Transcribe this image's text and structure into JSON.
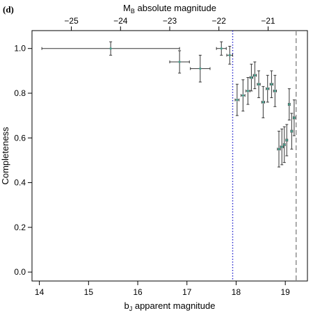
{
  "chart_data": {
    "type": "scatter",
    "panel_label": "(d)",
    "title": "",
    "xlabel": "bJ apparent magnitude",
    "xlabel_main": "b",
    "xlabel_sub": "J",
    "xlabel_rest": " apparent magnitude",
    "ylabel": "Completeness",
    "top_xlabel": "MB absolute magnitude",
    "top_xlabel_main": "M",
    "top_xlabel_sub": "B",
    "top_xlabel_rest": " absolute magnitude",
    "xlim": [
      13.85,
      19.45
    ],
    "ylim": [
      -0.04,
      1.08
    ],
    "x_ticks": [
      "14",
      "15",
      "16",
      "17",
      "18",
      "19"
    ],
    "y_ticks": [
      "0.0",
      "0.2",
      "0.4",
      "0.6",
      "0.8",
      "1.0"
    ],
    "top_ticks": [
      {
        "label": "−25",
        "x": 14.65
      },
      {
        "label": "−24",
        "x": 15.65
      },
      {
        "label": "−23",
        "x": 16.65
      },
      {
        "label": "−22",
        "x": 17.65
      },
      {
        "label": "−21",
        "x": 18.65
      }
    ],
    "grid": false,
    "colors": {
      "marker": "#4a9a8a",
      "errorbar": "#333333",
      "vline_dotted": "#2222cc",
      "vline_dashed": "#888888"
    },
    "reference_lines": [
      {
        "x": 17.93,
        "style": "dotted",
        "color": "#2222cc"
      },
      {
        "x": 19.22,
        "style": "dashed",
        "color": "#888888"
      }
    ],
    "points": [
      {
        "x": 15.45,
        "y": 1.0,
        "xerr_low": 1.4,
        "xerr_high": 1.4,
        "yerr": 0.03
      },
      {
        "x": 16.85,
        "y": 0.94,
        "xerr_low": 0.2,
        "xerr_high": 0.2,
        "yerr": 0.05
      },
      {
        "x": 17.27,
        "y": 0.91,
        "xerr_low": 0.2,
        "xerr_high": 0.2,
        "yerr": 0.06
      },
      {
        "x": 17.7,
        "y": 1.0,
        "xerr_low": 0.1,
        "xerr_high": 0.1,
        "yerr": 0.03
      },
      {
        "x": 17.87,
        "y": 0.97,
        "xerr_low": 0.06,
        "xerr_high": 0.06,
        "yerr": 0.04
      },
      {
        "x": 18.02,
        "y": 0.77,
        "xerr_low": 0.04,
        "xerr_high": 0.04,
        "yerr": 0.07
      },
      {
        "x": 18.14,
        "y": 0.79,
        "xerr_low": 0.04,
        "xerr_high": 0.04,
        "yerr": 0.07
      },
      {
        "x": 18.24,
        "y": 0.81,
        "xerr_low": 0.04,
        "xerr_high": 0.04,
        "yerr": 0.06
      },
      {
        "x": 18.31,
        "y": 0.87,
        "xerr_low": 0.03,
        "xerr_high": 0.03,
        "yerr": 0.06
      },
      {
        "x": 18.38,
        "y": 0.88,
        "xerr_low": 0.03,
        "xerr_high": 0.03,
        "yerr": 0.06
      },
      {
        "x": 18.46,
        "y": 0.84,
        "xerr_low": 0.03,
        "xerr_high": 0.03,
        "yerr": 0.06
      },
      {
        "x": 18.55,
        "y": 0.76,
        "xerr_low": 0.03,
        "xerr_high": 0.03,
        "yerr": 0.07
      },
      {
        "x": 18.64,
        "y": 0.82,
        "xerr_low": 0.03,
        "xerr_high": 0.03,
        "yerr": 0.06
      },
      {
        "x": 18.72,
        "y": 0.84,
        "xerr_low": 0.03,
        "xerr_high": 0.03,
        "yerr": 0.06
      },
      {
        "x": 18.79,
        "y": 0.81,
        "xerr_low": 0.03,
        "xerr_high": 0.03,
        "yerr": 0.07
      },
      {
        "x": 18.87,
        "y": 0.55,
        "xerr_low": 0.03,
        "xerr_high": 0.03,
        "yerr": 0.08
      },
      {
        "x": 18.93,
        "y": 0.56,
        "xerr_low": 0.03,
        "xerr_high": 0.03,
        "yerr": 0.08
      },
      {
        "x": 18.98,
        "y": 0.57,
        "xerr_low": 0.02,
        "xerr_high": 0.02,
        "yerr": 0.08
      },
      {
        "x": 19.03,
        "y": 0.59,
        "xerr_low": 0.02,
        "xerr_high": 0.02,
        "yerr": 0.07
      },
      {
        "x": 19.08,
        "y": 0.75,
        "xerr_low": 0.02,
        "xerr_high": 0.02,
        "yerr": 0.07
      },
      {
        "x": 19.13,
        "y": 0.63,
        "xerr_low": 0.02,
        "xerr_high": 0.02,
        "yerr": 0.08
      },
      {
        "x": 19.18,
        "y": 0.69,
        "xerr_low": 0.02,
        "xerr_high": 0.02,
        "yerr": 0.08
      }
    ]
  }
}
